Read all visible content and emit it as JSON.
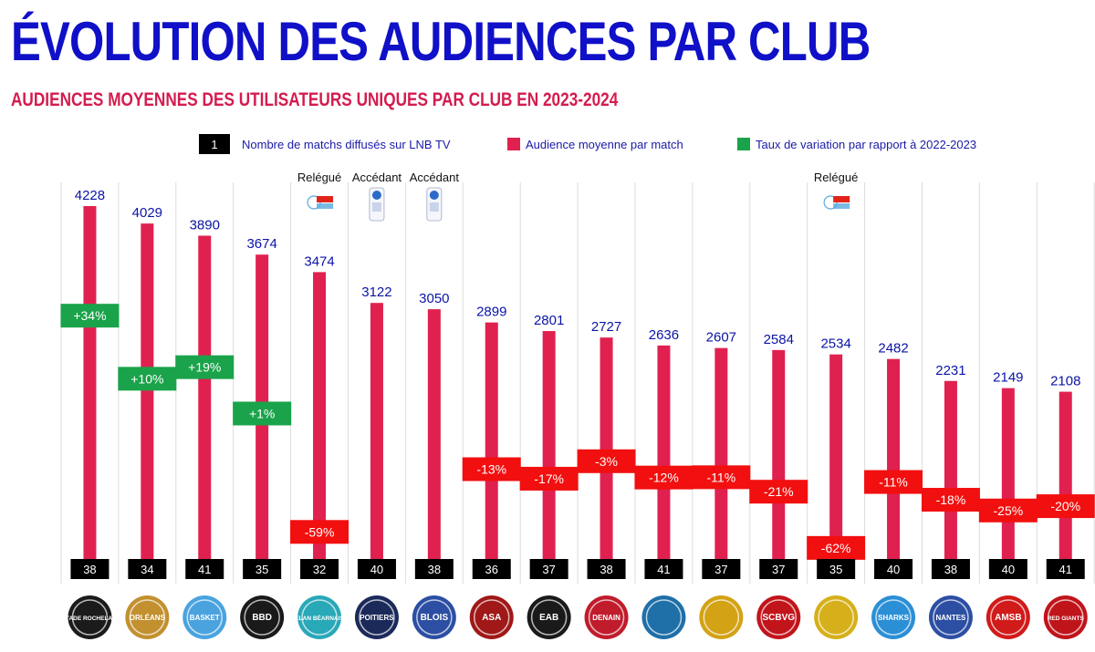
{
  "title": "ÉVOLUTION DES AUDIENCES PAR CLUB",
  "subtitle": "AUDIENCES MOYENNES DES UTILISATEURS UNIQUES PAR CLUB EN 2023-2024",
  "legend": [
    {
      "key": "matches",
      "swatch": "1",
      "label": "Nombre de matchs diffusés sur LNB TV",
      "color": "#000000"
    },
    {
      "key": "audience",
      "swatch": "",
      "label": "Audience moyenne par match",
      "color": "#e0214f"
    },
    {
      "key": "variation",
      "swatch": "",
      "label": "Taux de variation par rapport à 2022-2023",
      "color": "#1aa34a"
    }
  ],
  "colors": {
    "bar": "#e0214f",
    "positive": "#1aa34a",
    "negative": "#f20f0f",
    "matches_box": "#000000",
    "value_text": "#0a14a6",
    "divider": "#dddddd"
  },
  "chart_data": {
    "type": "bar",
    "ylim": [
      0,
      4500
    ],
    "clubs": [
      {
        "logo": "stade-rochelais-logo",
        "logo_text": "STADE ROCHELAIS",
        "audience": 4228,
        "variation": 34,
        "matches": 38,
        "status": "",
        "badge": ""
      },
      {
        "logo": "orleans-loiret-basket-logo",
        "logo_text": "ORLÉANS",
        "audience": 4029,
        "variation": 10,
        "matches": 34,
        "status": "",
        "badge": ""
      },
      {
        "logo": "jav-basket-logo",
        "logo_text": "BASKET",
        "audience": 3890,
        "variation": 19,
        "matches": 41,
        "status": "",
        "badge": ""
      },
      {
        "logo": "bbd-logo",
        "logo_text": "BBD",
        "audience": 3674,
        "variation": 1,
        "matches": 35,
        "status": "",
        "badge": ""
      },
      {
        "logo": "elan-bearnais-logo",
        "logo_text": "ÉLAN BÉARNAIS",
        "audience": 3474,
        "variation": -59,
        "matches": 32,
        "status": "Relégué",
        "badge": "betclic-elite"
      },
      {
        "logo": "poitiers-basket-logo",
        "logo_text": "POITIERS",
        "audience": 3122,
        "variation": null,
        "matches": 40,
        "status": "Accédant",
        "badge": "pro-b"
      },
      {
        "logo": "blois-adabb-logo",
        "logo_text": "BLOIS",
        "audience": 3050,
        "variation": null,
        "matches": 38,
        "status": "Accédant",
        "badge": "pro-b"
      },
      {
        "logo": "asa-logo",
        "logo_text": "ASA",
        "audience": 2899,
        "variation": -13,
        "matches": 36,
        "status": "",
        "badge": ""
      },
      {
        "logo": "eab-logo",
        "logo_text": "EAB",
        "audience": 2801,
        "variation": -17,
        "matches": 37,
        "status": "",
        "badge": ""
      },
      {
        "logo": "denain-logo",
        "logo_text": "DENAIN",
        "audience": 2727,
        "variation": -3,
        "matches": 38,
        "status": "",
        "badge": ""
      },
      {
        "logo": "boulazac-logo",
        "logo_text": "",
        "audience": 2636,
        "variation": -12,
        "matches": 41,
        "status": "",
        "badge": ""
      },
      {
        "logo": "roanne-logo",
        "logo_text": "",
        "audience": 2607,
        "variation": -11,
        "matches": 37,
        "status": "",
        "badge": ""
      },
      {
        "logo": "scbvg-logo",
        "logo_text": "SCBVG",
        "audience": 2584,
        "variation": -21,
        "matches": 37,
        "status": "",
        "badge": ""
      },
      {
        "logo": "fos-provence-basket-logo",
        "logo_text": "",
        "audience": 2534,
        "variation": -62,
        "matches": 35,
        "status": "Relégué",
        "badge": "betclic-elite"
      },
      {
        "logo": "sharks-antibes-logo",
        "logo_text": "SHARKS",
        "audience": 2482,
        "variation": -11,
        "matches": 40,
        "status": "",
        "badge": ""
      },
      {
        "logo": "nantes-basket-logo",
        "logo_text": "NANTES",
        "audience": 2231,
        "variation": -18,
        "matches": 38,
        "status": "",
        "badge": ""
      },
      {
        "logo": "amsb-logo",
        "logo_text": "AMSB",
        "audience": 2149,
        "variation": -25,
        "matches": 40,
        "status": "",
        "badge": ""
      },
      {
        "logo": "red-giants-logo",
        "logo_text": "RED GIANTS",
        "audience": 2108,
        "variation": -20,
        "matches": 41,
        "status": "",
        "badge": ""
      }
    ]
  }
}
